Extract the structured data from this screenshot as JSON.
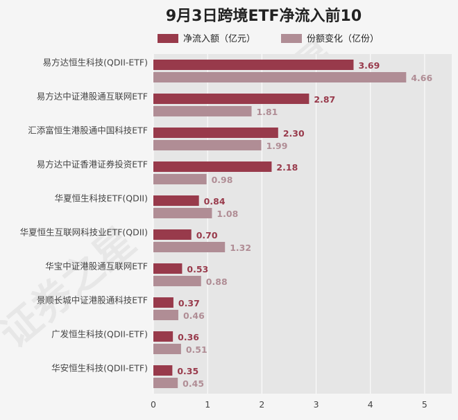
{
  "colors": {
    "net_inflow": "#983a4b",
    "share_change": "#b08d95",
    "plot_bg": "#e6e6e6",
    "page_bg": "#f5f5f5"
  },
  "watermark": [
    "证券之星",
    "证券之星",
    "证券之星"
  ],
  "chart_data": {
    "type": "bar",
    "orientation": "horizontal",
    "title": "9月3日跨境ETF净流入前10",
    "xlabel": "",
    "ylabel": "",
    "xlim": [
      0,
      5.5
    ],
    "xticks": [
      0,
      1,
      2,
      3,
      4,
      5
    ],
    "grid": true,
    "legend_position": "top",
    "categories": [
      "易方达恒生科技(QDII-ETF)",
      "易方达中证港股通互联网ETF",
      "汇添富恒生港股通中国科技ETF",
      "易方达中证香港证券投资ETF",
      "华夏恒生科技ETF(QDII)",
      "华夏恒生互联网科技业ETF(QDII)",
      "华宝中证港股通互联网ETF",
      "景顺长城中证港股通科技ETF",
      "广发恒生科技(QDII-ETF)",
      "华安恒生科技(QDII-ETF)"
    ],
    "series": [
      {
        "name": "净流入额（亿元）",
        "values": [
          3.69,
          2.87,
          2.3,
          2.18,
          0.84,
          0.7,
          0.53,
          0.37,
          0.36,
          0.35
        ],
        "labels": [
          "3.69",
          "2.87",
          "2.30",
          "2.18",
          "0.84",
          "0.70",
          "0.53",
          "0.37",
          "0.36",
          "0.35"
        ]
      },
      {
        "name": "份额变化（亿份）",
        "values": [
          4.66,
          1.81,
          1.99,
          0.98,
          1.08,
          1.32,
          0.88,
          0.46,
          0.51,
          0.45
        ],
        "labels": [
          "4.66",
          "1.81",
          "1.99",
          "0.98",
          "1.08",
          "1.32",
          "0.88",
          "0.46",
          "0.51",
          "0.45"
        ]
      }
    ]
  }
}
